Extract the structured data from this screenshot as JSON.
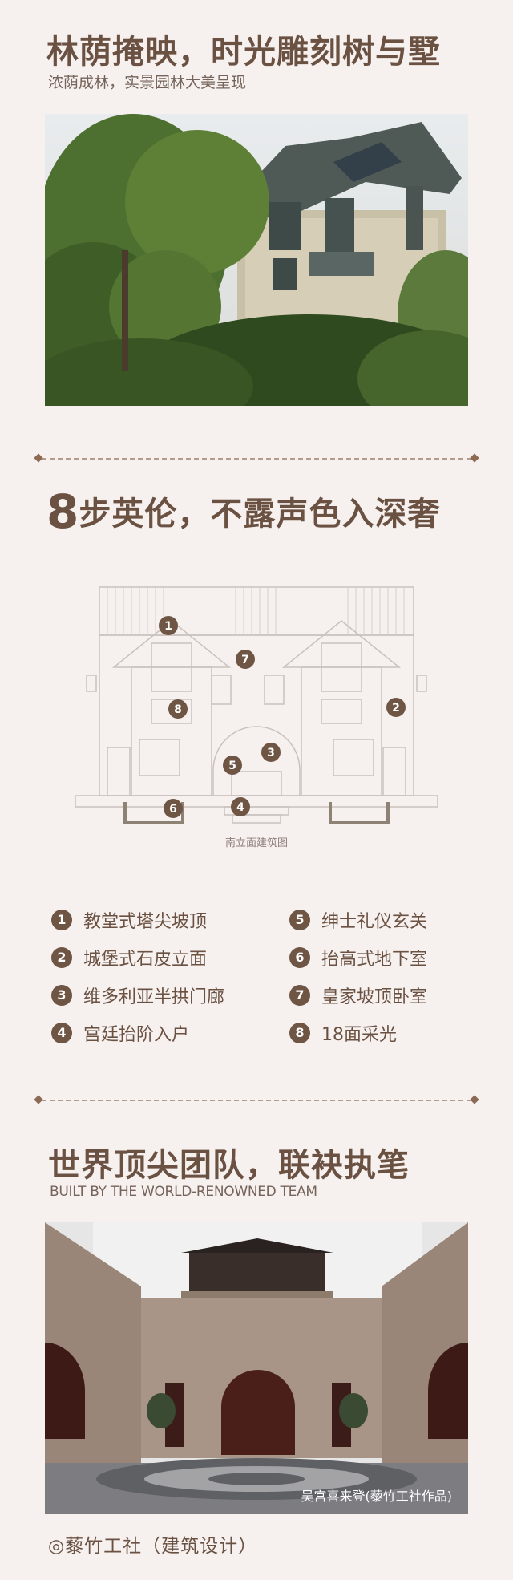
{
  "section1": {
    "title": "林荫掩映，时光雕刻树与墅",
    "subtitle": "浓荫成林，实景园林大美呈现"
  },
  "section2": {
    "title_number": "8",
    "title_text": "步英伦，不露声色入深奢",
    "diagram_caption": "南立面建筑图",
    "diagram_markers": [
      "1",
      "7",
      "8",
      "2",
      "3",
      "5",
      "6",
      "4"
    ],
    "features": [
      {
        "num": "1",
        "label": "教堂式塔尖坡顶"
      },
      {
        "num": "2",
        "label": "城堡式石皮立面"
      },
      {
        "num": "3",
        "label": "维多利亚半拱门廊"
      },
      {
        "num": "4",
        "label": "宫廷抬阶入户"
      },
      {
        "num": "5",
        "label": "绅士礼仪玄关"
      },
      {
        "num": "6",
        "label": "抬高式地下室"
      },
      {
        "num": "7",
        "label": "皇家坡顶卧室"
      },
      {
        "num": "8",
        "label": "18面采光"
      }
    ]
  },
  "section3": {
    "title": "世界顶尖团队，联袂执笔",
    "subtitle": "BUILT BY THE WORLD-RENOWNED TEAM",
    "photo_caption": "吴宫喜来登(藜竹工社作品)",
    "credit": "◎藜竹工社（建筑设计）"
  },
  "colors": {
    "background": "#f6f1ef",
    "primary_text": "#6a5142",
    "badge": "#6e5544",
    "divider": "#b39a8c"
  }
}
